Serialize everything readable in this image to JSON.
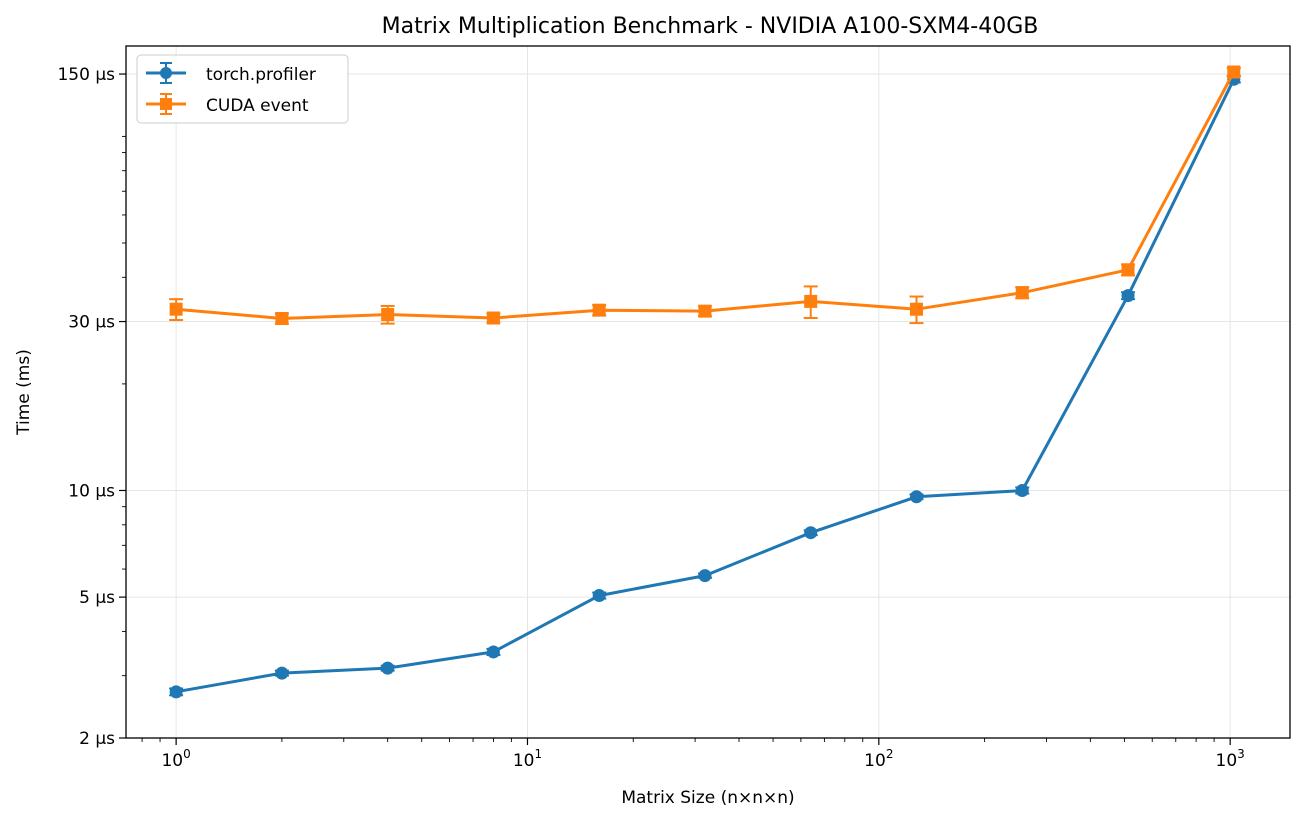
{
  "chart_data": {
    "type": "line",
    "title": "Matrix Multiplication Benchmark - NVIDIA A100-SXM4-40GB",
    "xlabel": "Matrix Size (n×n×n)",
    "ylabel": "Time (ms)",
    "xscale": "log",
    "yscale": "log",
    "xlim": [
      0.72,
      1480
    ],
    "ylim": [
      2,
      180
    ],
    "x_ticks": [
      {
        "value": 1,
        "base": "10",
        "exp": "0"
      },
      {
        "value": 10,
        "base": "10",
        "exp": "1"
      },
      {
        "value": 100,
        "base": "10",
        "exp": "2"
      },
      {
        "value": 1000,
        "base": "10",
        "exp": "3"
      }
    ],
    "y_ticks": [
      {
        "value": 2,
        "label": "2 µs"
      },
      {
        "value": 5,
        "label": "5 µs"
      },
      {
        "value": 10,
        "label": "10 µs"
      },
      {
        "value": 30,
        "label": "30 µs"
      },
      {
        "value": 150,
        "label": "150 µs"
      }
    ],
    "grid": true,
    "legend_position": "top-left",
    "x": [
      1,
      2,
      4,
      8,
      16,
      32,
      64,
      128,
      256,
      512,
      1024
    ],
    "series": [
      {
        "name": "torch.profiler",
        "color": "#1f77b4",
        "marker": "circle",
        "values": [
          2.7,
          3.05,
          3.15,
          3.5,
          5.05,
          5.75,
          7.6,
          9.6,
          10.0,
          35.5,
          145
        ],
        "errors": [
          0.06,
          0.05,
          0.05,
          0.07,
          0.1,
          0.08,
          0.12,
          0.15,
          0.2,
          0.8,
          3
        ]
      },
      {
        "name": "CUDA event",
        "color": "#ff7f0e",
        "marker": "square",
        "values": [
          32.5,
          30.6,
          31.4,
          30.7,
          32.3,
          32.1,
          34.2,
          32.5,
          36.2,
          42.0,
          152
        ],
        "errors": [
          2.2,
          1.0,
          1.8,
          0.9,
          1.1,
          1.0,
          3.5,
          2.8,
          1.3,
          1.5,
          4
        ]
      }
    ]
  }
}
